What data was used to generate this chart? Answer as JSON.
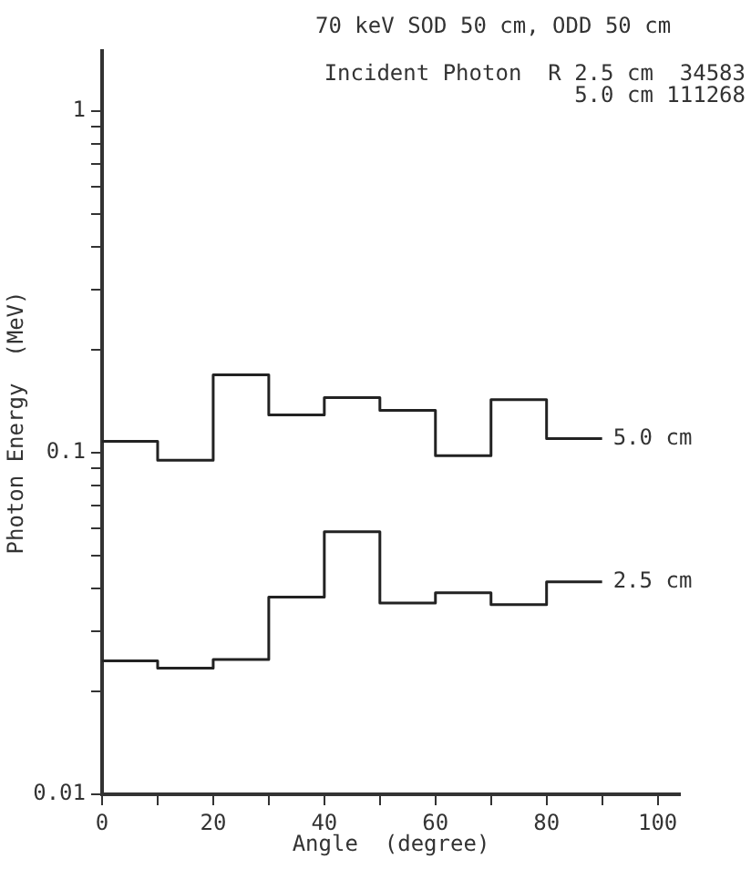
{
  "chart_data": {
    "type": "step",
    "title": "70 keV SOD 50 cm, ODD 50 cm",
    "annotations": [
      "Incident Photon  R 2.5 cm  34583",
      "5.0 cm 111268"
    ],
    "xlabel": "Angle  (degree)",
    "ylabel": "Photon Energy  (MeV)",
    "x": [
      0,
      10,
      20,
      30,
      40,
      50,
      60,
      70,
      80,
      90
    ],
    "series": [
      {
        "name": "5.0 cm",
        "color": "#222222",
        "values": [
          0.108,
          0.095,
          0.169,
          0.129,
          0.145,
          0.133,
          0.098,
          0.143,
          0.11,
          0.11
        ]
      },
      {
        "name": "2.5 cm",
        "color": "#222222",
        "values": [
          0.0246,
          0.0234,
          0.0248,
          0.0378,
          0.0587,
          0.0363,
          0.0389,
          0.0359,
          0.0419,
          0.0419
        ]
      }
    ],
    "log": "y",
    "xlim": [
      0,
      104
    ],
    "ylim": [
      0.01,
      1.5
    ],
    "xticks": [
      0,
      {
        "value": 10,
        "label": null
      },
      20,
      {
        "value": 30,
        "label": null
      },
      40,
      {
        "value": 50,
        "label": null
      },
      60,
      {
        "value": 70,
        "label": null
      },
      80,
      {
        "value": 90,
        "label": null
      },
      100
    ],
    "yticks": [
      0.01,
      {
        "value": 0.02,
        "label": null
      },
      {
        "value": 0.03,
        "label": null
      },
      {
        "value": 0.04,
        "label": null
      },
      {
        "value": 0.05,
        "label": null
      },
      {
        "value": 0.06,
        "label": null
      },
      {
        "value": 0.07,
        "label": null
      },
      {
        "value": 0.08,
        "label": null
      },
      {
        "value": 0.09,
        "label": null
      },
      0.1,
      {
        "value": 0.2,
        "label": null
      },
      {
        "value": 0.3,
        "label": null
      },
      {
        "value": 0.4,
        "label": null
      },
      {
        "value": 0.5,
        "label": null
      },
      {
        "value": 0.6,
        "label": null
      },
      {
        "value": 0.7,
        "label": null
      },
      {
        "value": 0.8,
        "label": null
      },
      {
        "value": 0.9,
        "label": null
      },
      1
    ],
    "grid": false,
    "legend": false,
    "marker": "none",
    "line_style": "solid"
  }
}
